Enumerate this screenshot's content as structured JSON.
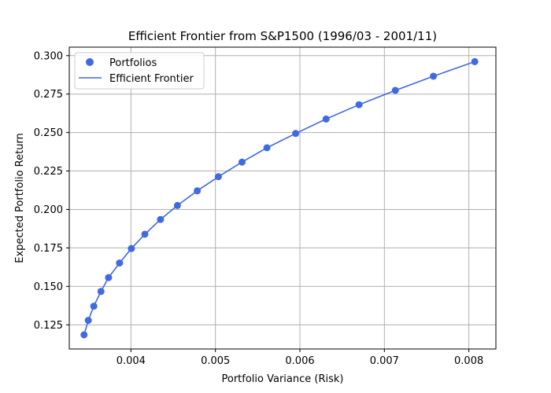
{
  "chart_data": {
    "type": "scatter",
    "title": "Efficient Frontier from S&P1500 (1996/03 - 2001/11)",
    "xlabel": "Portfolio Variance (Risk)",
    "ylabel": "Expected Portfolio Return",
    "xlim": [
      0.00327,
      0.00832
    ],
    "ylim": [
      0.1093,
      0.3055
    ],
    "xticks": [
      "0.004",
      "0.005",
      "0.006",
      "0.007",
      "0.008"
    ],
    "yticks": [
      "0.125",
      "0.150",
      "0.175",
      "0.200",
      "0.225",
      "0.250",
      "0.275",
      "0.300"
    ],
    "grid": true,
    "legend_position": "top-left",
    "series": [
      {
        "name": "Portfolios",
        "kind": "scatter",
        "color": "#4169e1",
        "points": [
          [
            0.003445,
            0.1185
          ],
          [
            0.003495,
            0.1279
          ],
          [
            0.00356,
            0.1371
          ],
          [
            0.003645,
            0.1467
          ],
          [
            0.003735,
            0.1557
          ],
          [
            0.003865,
            0.1652
          ],
          [
            0.004005,
            0.1746
          ],
          [
            0.004165,
            0.1839
          ],
          [
            0.00435,
            0.1935
          ],
          [
            0.00455,
            0.2026
          ],
          [
            0.004785,
            0.2121
          ],
          [
            0.005035,
            0.2213
          ],
          [
            0.005315,
            0.2308
          ],
          [
            0.00561,
            0.2401
          ],
          [
            0.00595,
            0.2494
          ],
          [
            0.00631,
            0.2588
          ],
          [
            0.0067,
            0.2681
          ],
          [
            0.00713,
            0.2774
          ],
          [
            0.00758,
            0.2866
          ],
          [
            0.00807,
            0.2961
          ]
        ]
      },
      {
        "name": "Efficient Frontier",
        "kind": "line",
        "color": "#4169e1"
      }
    ]
  }
}
